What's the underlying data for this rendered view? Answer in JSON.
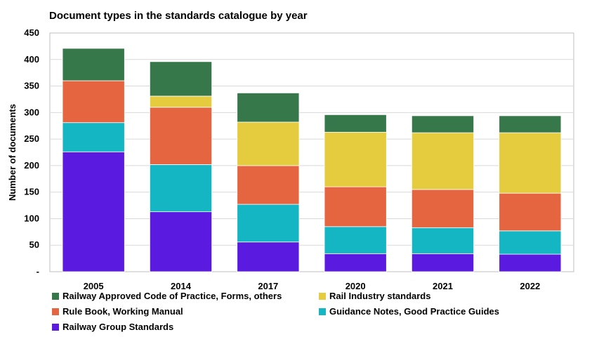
{
  "chart_data": {
    "type": "bar",
    "stacked": true,
    "title": "Document types in the standards catalogue by year",
    "xlabel": "",
    "ylabel": "Number of documents",
    "ylim": [
      0,
      450
    ],
    "yticks": [
      0,
      50,
      100,
      150,
      200,
      250,
      300,
      350,
      400,
      450
    ],
    "ytick_labels": [
      "-",
      "50",
      "100",
      "150",
      "200",
      "250",
      "300",
      "350",
      "400",
      "450"
    ],
    "grid": true,
    "legend_position": "bottom",
    "categories": [
      "2005",
      "2014",
      "2017",
      "2020",
      "2021",
      "2022"
    ],
    "series": [
      {
        "name": "Railway Group Standards",
        "color": "#5B1AE0",
        "values": [
          226,
          113,
          56,
          34,
          34,
          33
        ]
      },
      {
        "name": "Guidance Notes, Good Practice Guides",
        "color": "#13B6C2",
        "values": [
          55,
          89,
          71,
          51,
          49,
          44
        ]
      },
      {
        "name": "Rule Book, Working Manual",
        "color": "#E56541",
        "values": [
          79,
          108,
          73,
          75,
          72,
          71
        ]
      },
      {
        "name": "Rail Industry standards",
        "color": "#E5CC3E",
        "values": [
          0,
          21,
          82,
          103,
          107,
          114
        ]
      },
      {
        "name": "Railway Approved Code of Practice, Forms, others",
        "color": "#37784A",
        "values": [
          61,
          65,
          55,
          33,
          32,
          32
        ]
      }
    ]
  }
}
